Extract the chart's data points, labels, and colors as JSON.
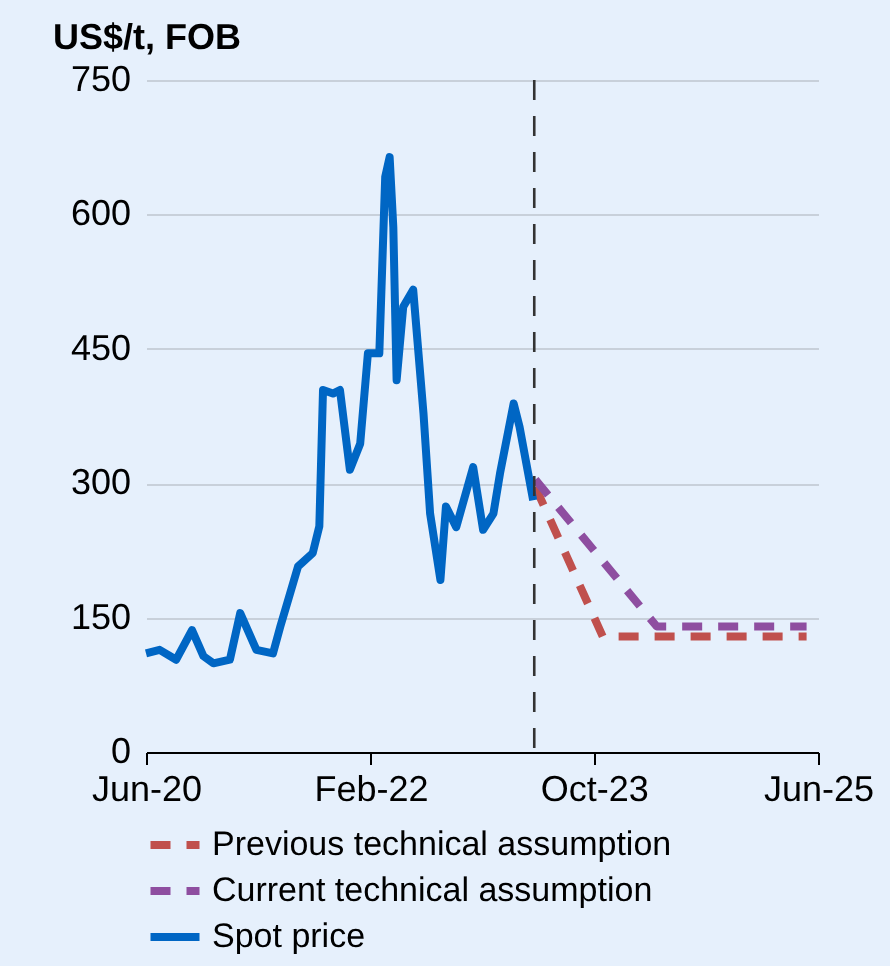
{
  "chart_data": {
    "type": "line",
    "ylabel": "US$/t, FOB",
    "series": [
      {
        "name": "Previous technical assumption",
        "color": "#c0504d",
        "line_style": "dashed",
        "x": [
          "2023-04-25",
          "2023-10-25",
          "2025-05-01"
        ],
        "values": [
          296,
          129,
          129
        ]
      },
      {
        "name": "Current technical assumption",
        "color": "#8e4ea0",
        "line_style": "dashed",
        "x": [
          "2023-04-25",
          "2024-03-20",
          "2025-05-01"
        ],
        "values": [
          304,
          140,
          140
        ]
      },
      {
        "name": "Spot price",
        "color": "#0066c4",
        "line_style": "solid",
        "x": [
          "2020-06-01",
          "2020-07-08",
          "2020-08-22",
          "2020-10-04",
          "2020-11-04",
          "2020-12-01",
          "2021-01-15",
          "2021-02-12",
          "2021-03-28",
          "2021-05-12",
          "2021-06-01",
          "2021-07-19",
          "2021-08-28",
          "2021-09-15",
          "2021-09-25",
          "2021-10-22",
          "2021-11-10",
          "2021-12-07",
          "2022-01-04",
          "2022-01-25",
          "2022-02-25",
          "2022-03-13",
          "2022-03-25",
          "2022-04-04",
          "2022-04-13",
          "2022-05-01",
          "2022-05-28",
          "2022-06-25",
          "2022-07-13",
          "2022-08-10",
          "2022-08-25",
          "2022-09-22",
          "2022-11-07",
          "2022-12-04",
          "2023-01-01",
          "2023-01-19",
          "2023-02-25",
          "2023-03-13",
          "2023-04-19"
        ],
        "values": [
          110,
          114,
          103,
          136,
          107,
          99,
          103,
          155,
          114,
          110,
          140,
          207,
          222,
          252,
          404,
          400,
          404,
          315,
          344,
          445,
          445,
          642,
          664,
          586,
          415,
          497,
          516,
          378,
          266,
          192,
          274,
          251,
          318,
          248,
          266,
          311,
          389,
          363,
          281
        ]
      }
    ],
    "xlim": [
      "2020-06-01",
      "2025-06-01"
    ],
    "xticks": [
      {
        "value": "2020-06-01",
        "label": "Jun-20"
      },
      {
        "value": "2022-02-01",
        "label": "Feb-22"
      },
      {
        "value": "2023-10-01",
        "label": "Oct-23"
      },
      {
        "value": "2025-06-01",
        "label": "Jun-25"
      }
    ],
    "ylim": [
      0,
      750
    ],
    "yticks": [
      0,
      150,
      300,
      450,
      600,
      750
    ],
    "ref_lines": [
      {
        "axis": "x",
        "value": "2023-04-22",
        "label": null,
        "color": "#333333",
        "line_style": "dashed"
      }
    ],
    "grid": "y",
    "legend": "bottom"
  }
}
